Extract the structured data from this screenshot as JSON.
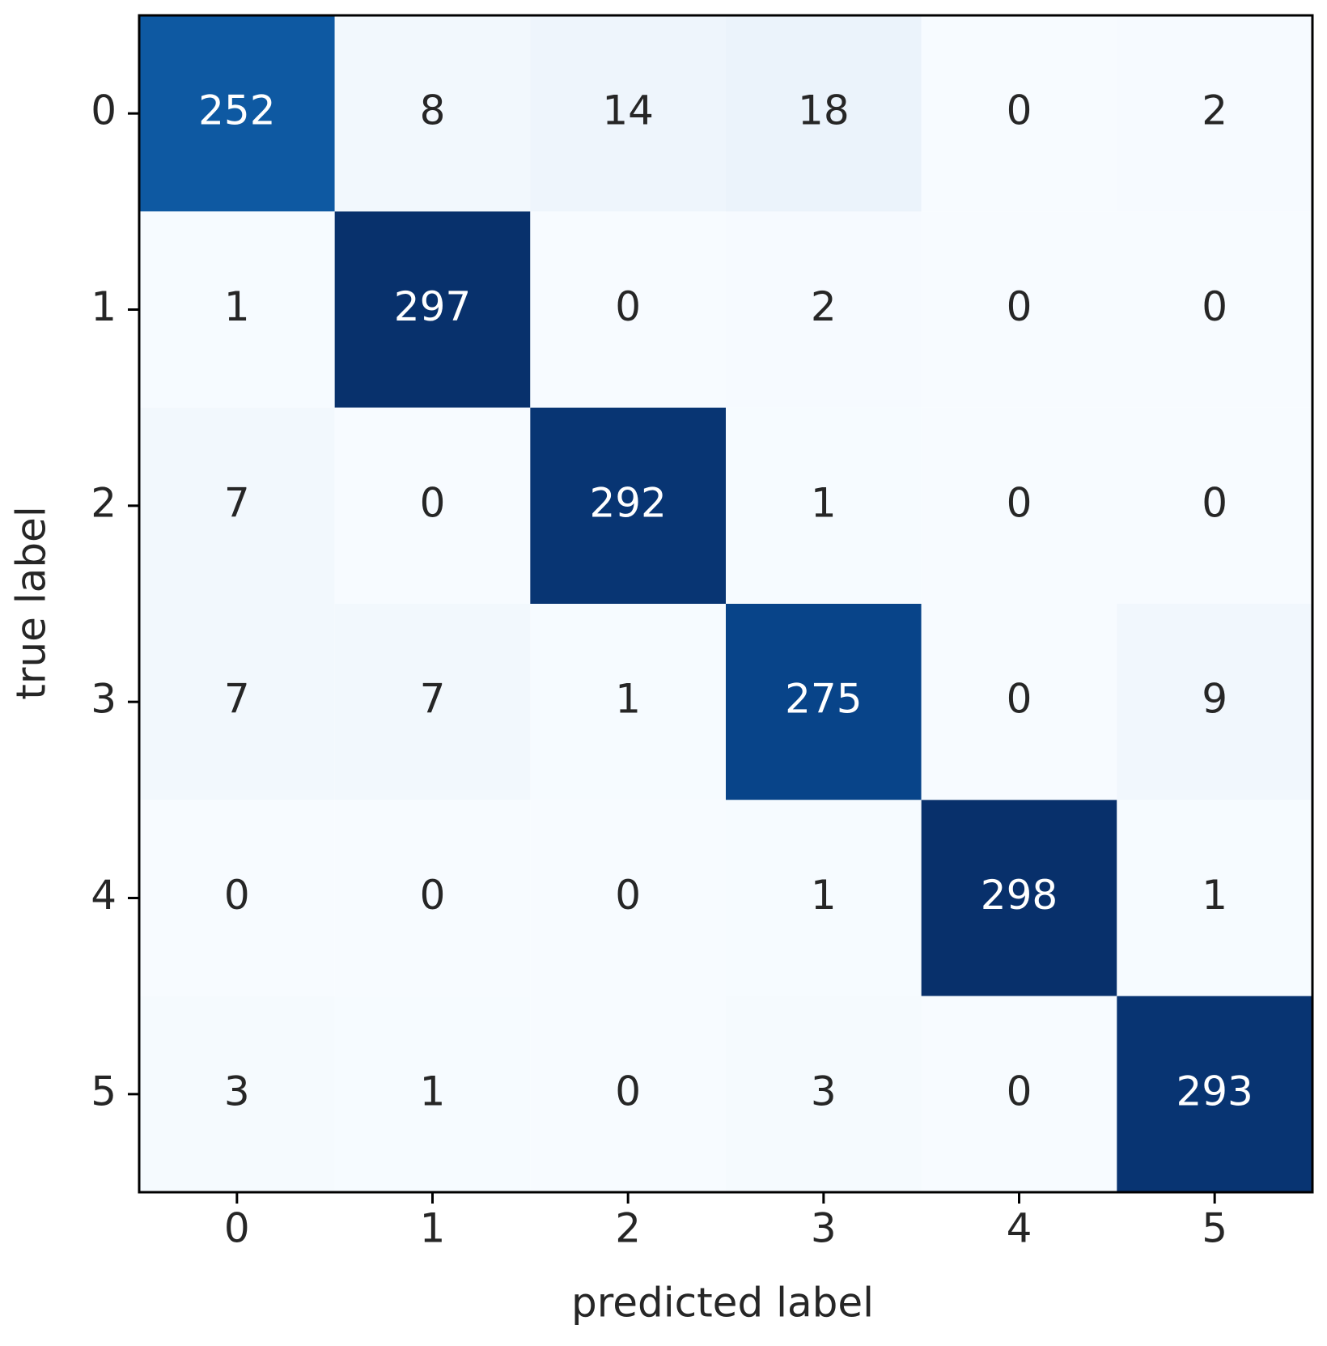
{
  "chart_data": {
    "type": "heatmap",
    "xlabel": "predicted label",
    "ylabel": "true label",
    "xlim": [
      -0.5,
      5.5
    ],
    "ylim": [
      5.5,
      -0.5
    ],
    "xticks": [
      0,
      1,
      2,
      3,
      4,
      5
    ],
    "yticks": [
      0,
      1,
      2,
      3,
      4,
      5
    ],
    "colormap": "Blues",
    "matrix": [
      [
        252,
        8,
        14,
        18,
        0,
        2
      ],
      [
        1,
        297,
        0,
        2,
        0,
        0
      ],
      [
        7,
        0,
        292,
        1,
        0,
        0
      ],
      [
        7,
        7,
        1,
        275,
        0,
        9
      ],
      [
        0,
        0,
        0,
        1,
        298,
        1
      ],
      [
        3,
        1,
        0,
        3,
        0,
        293
      ]
    ]
  }
}
